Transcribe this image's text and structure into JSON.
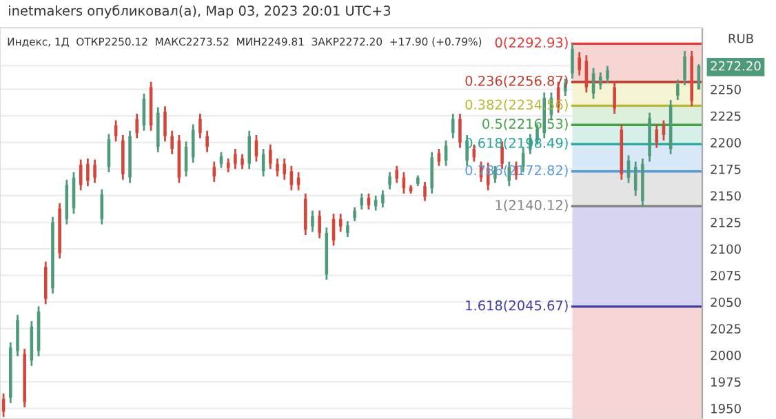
{
  "chart_data": {
    "type": "candlestick",
    "title": "inetmakers опубликовал(а), Мар 03, 2023 20:01 UTC+3",
    "subtitle": "Индекс, 1Д  ОТКР2250.12  МАКС2273.52  МИН2249.81  ЗАКР2272.20  +17.90 (+0.79%)",
    "ylabel": "RUB",
    "categories": [
      null,
      null,
      null,
      null,
      null,
      null,
      null,
      null,
      null,
      null,
      null,
      null,
      null,
      null,
      null,
      null,
      null,
      null,
      null,
      null,
      null,
      null,
      null,
      null,
      null,
      null,
      null,
      null,
      null,
      null,
      null,
      null,
      null,
      null,
      null,
      null,
      null,
      null,
      null,
      null,
      null,
      null,
      null,
      null,
      null,
      null,
      null,
      null,
      null,
      null,
      null,
      null,
      null,
      null,
      null,
      null,
      null,
      null,
      null,
      null,
      null,
      null,
      null,
      null,
      null,
      null,
      null,
      null,
      null,
      null,
      null,
      null,
      null,
      null,
      null,
      null,
      null,
      null,
      null,
      null,
      null,
      null,
      null,
      null,
      null,
      null,
      null,
      null,
      null,
      null,
      null,
      null,
      null,
      null,
      null,
      null,
      null,
      null,
      null,
      null
    ],
    "ohlc": [
      [
        1959,
        1964,
        1942,
        1947
      ],
      [
        1960,
        2012,
        1955,
        2007
      ],
      [
        2004,
        2038,
        1999,
        2033
      ],
      [
        2001,
        2006,
        1951,
        1956
      ],
      [
        1995,
        2032,
        1990,
        2027
      ],
      [
        2004,
        2046,
        1999,
        2041
      ],
      [
        2083,
        2088,
        2048,
        2053
      ],
      [
        2063,
        2130,
        2058,
        2125
      ],
      [
        2138,
        2143,
        2091,
        2096
      ],
      [
        2128,
        2165,
        2123,
        2160
      ],
      [
        2138,
        2172,
        2133,
        2167
      ],
      [
        2179,
        2184,
        2155,
        2160
      ],
      [
        2180,
        2185,
        2159,
        2164
      ],
      [
        2179,
        2184,
        2162,
        2167
      ],
      [
        2128,
        2156,
        2123,
        2151
      ],
      [
        2177,
        2208,
        2172,
        2203
      ],
      [
        2216,
        2221,
        2201,
        2206
      ],
      [
        2202,
        2207,
        2165,
        2170
      ],
      [
        2167,
        2211,
        2162,
        2206
      ],
      [
        2222,
        2227,
        2204,
        2209
      ],
      [
        2216,
        2246,
        2211,
        2241
      ],
      [
        2252,
        2257,
        2211,
        2216
      ],
      [
        2196,
        2233,
        2191,
        2228
      ],
      [
        2229,
        2234,
        2201,
        2206
      ],
      [
        2206,
        2211,
        2189,
        2194
      ],
      [
        2202,
        2207,
        2162,
        2167
      ],
      [
        2173,
        2201,
        2168,
        2196
      ],
      [
        2186,
        2217,
        2181,
        2212
      ],
      [
        2222,
        2227,
        2204,
        2209
      ],
      [
        2206,
        2211,
        2191,
        2196
      ],
      [
        2177,
        2182,
        2163,
        2168
      ],
      [
        2180,
        2191,
        2176,
        2187
      ],
      [
        2181,
        2185,
        2172,
        2176
      ],
      [
        2189,
        2194,
        2175,
        2180
      ],
      [
        2185,
        2189,
        2175,
        2179
      ],
      [
        2180,
        2211,
        2175,
        2206
      ],
      [
        2202,
        2207,
        2182,
        2187
      ],
      [
        2173,
        2194,
        2168,
        2189
      ],
      [
        2193,
        2198,
        2175,
        2180
      ],
      [
        2180,
        2185,
        2168,
        2173
      ],
      [
        2180,
        2185,
        2165,
        2170
      ],
      [
        2173,
        2178,
        2155,
        2160
      ],
      [
        2167,
        2172,
        2155,
        2160
      ],
      [
        2147,
        2152,
        2113,
        2118
      ],
      [
        2121,
        2136,
        2116,
        2131
      ],
      [
        2131,
        2136,
        2110,
        2115
      ],
      [
        2076,
        2120,
        2071,
        2115
      ],
      [
        2128,
        2133,
        2103,
        2108
      ],
      [
        2128,
        2133,
        2116,
        2121
      ],
      [
        2115,
        2126,
        2111,
        2122
      ],
      [
        2129,
        2139,
        2126,
        2136
      ],
      [
        2141,
        2152,
        2137,
        2148
      ],
      [
        2148,
        2152,
        2137,
        2141
      ],
      [
        2140,
        2150,
        2136,
        2146
      ],
      [
        2143,
        2155,
        2139,
        2151
      ],
      [
        2160,
        2172,
        2156,
        2168
      ],
      [
        2174,
        2178,
        2162,
        2166
      ],
      [
        2167,
        2172,
        2152,
        2157
      ],
      [
        2158,
        2160,
        2152,
        2154
      ],
      [
        2161,
        2169,
        2159,
        2167
      ],
      [
        2159,
        2163,
        2145,
        2149
      ],
      [
        2157,
        2191,
        2152,
        2186
      ],
      [
        2190,
        2194,
        2178,
        2182
      ],
      [
        2183,
        2202,
        2178,
        2197
      ],
      [
        2209,
        2227,
        2204,
        2222
      ],
      [
        2222,
        2227,
        2195,
        2200
      ],
      [
        2183,
        2207,
        2178,
        2202
      ],
      [
        2194,
        2198,
        2182,
        2186
      ],
      [
        2178,
        2182,
        2163,
        2167
      ],
      [
        2176,
        2181,
        2155,
        2160
      ],
      [
        2166,
        2178,
        2162,
        2174
      ],
      [
        2196,
        2201,
        2175,
        2180
      ],
      [
        2164,
        2182,
        2159,
        2177
      ],
      [
        2178,
        2182,
        2165,
        2169
      ],
      [
        2177,
        2195,
        2172,
        2190
      ],
      [
        2193,
        2208,
        2189,
        2204
      ],
      [
        2202,
        2217,
        2198,
        2213
      ],
      [
        2209,
        2247,
        2204,
        2242
      ],
      [
        2226,
        2247,
        2221,
        2242
      ],
      [
        2252,
        2257,
        2228,
        2233
      ],
      [
        2248,
        2260,
        2244,
        2256
      ],
      [
        2265,
        2292.93,
        2260,
        2288
      ],
      [
        2280,
        2285,
        2263,
        2268
      ],
      [
        2277,
        2282,
        2247,
        2252
      ],
      [
        2246,
        2270,
        2241,
        2265
      ],
      [
        2254,
        2266,
        2250,
        2262
      ],
      [
        2260,
        2272,
        2256,
        2268
      ],
      [
        2252,
        2257,
        2227,
        2232
      ],
      [
        2212,
        2217,
        2165,
        2170
      ],
      [
        2167,
        2188,
        2162,
        2183
      ],
      [
        2155,
        2182,
        2150,
        2177
      ],
      [
        2145,
        2185,
        2140.12,
        2180
      ],
      [
        2187,
        2228,
        2182,
        2223
      ],
      [
        2212,
        2217,
        2195,
        2200
      ],
      [
        2216,
        2221,
        2202,
        2207
      ],
      [
        2194,
        2240,
        2189,
        2235
      ],
      [
        2244,
        2259,
        2240,
        2255
      ],
      [
        2259,
        2286,
        2254,
        2281
      ],
      [
        2281,
        2286,
        2234,
        2239
      ],
      [
        2250.12,
        2273.52,
        2249.81,
        2272.2
      ]
    ],
    "colors": [
      "#d2463c",
      "#4e9a7a",
      "#4e9a7a",
      "#d2463c",
      "#4e9a7a",
      "#4e9a7a",
      "#d2463c",
      "#4e9a7a",
      "#d2463c",
      "#4e9a7a",
      "#4e9a7a",
      "#d2463c",
      "#d2463c",
      "#d2463c",
      "#4e9a7a",
      "#4e9a7a",
      "#d2463c",
      "#d2463c",
      "#4e9a7a",
      "#d2463c",
      "#4e9a7a",
      "#d2463c",
      "#4e9a7a",
      "#d2463c",
      "#d2463c",
      "#d2463c",
      "#4e9a7a",
      "#4e9a7a",
      "#d2463c",
      "#d2463c",
      "#d2463c",
      "#4e9a7a",
      "#d2463c",
      "#d2463c",
      "#d2463c",
      "#4e9a7a",
      "#d2463c",
      "#4e9a7a",
      "#d2463c",
      "#d2463c",
      "#d2463c",
      "#d2463c",
      "#d2463c",
      "#d2463c",
      "#4e9a7a",
      "#d2463c",
      "#4e9a7a",
      "#d2463c",
      "#d2463c",
      "#4e9a7a",
      "#4e9a7a",
      "#4e9a7a",
      "#d2463c",
      "#4e9a7a",
      "#4e9a7a",
      "#4e9a7a",
      "#d2463c",
      "#d2463c",
      "#d2463c",
      "#4e9a7a",
      "#d2463c",
      "#4e9a7a",
      "#d2463c",
      "#4e9a7a",
      "#4e9a7a",
      "#d2463c",
      "#4e9a7a",
      "#d2463c",
      "#d2463c",
      "#d2463c",
      "#4e9a7a",
      "#d2463c",
      "#4e9a7a",
      "#d2463c",
      "#4e9a7a",
      "#4e9a7a",
      "#4e9a7a",
      "#4e9a7a",
      "#4e9a7a",
      "#d2463c",
      "#4e9a7a",
      "#4e9a7a",
      "#d2463c",
      "#d2463c",
      "#4e9a7a",
      "#4e9a7a",
      "#4e9a7a",
      "#d2463c",
      "#d2463c",
      "#4e9a7a",
      "#4e9a7a",
      "#4e9a7a",
      "#4e9a7a",
      "#d2463c",
      "#d2463c",
      "#4e9a7a",
      "#4e9a7a",
      "#4e9a7a",
      "#d2463c",
      "#4e9a7a"
    ],
    "ylim": [
      1940,
      2308
    ],
    "yticks": [
      1950,
      1975,
      2000,
      2025,
      2050,
      2075,
      2100,
      2125,
      2150,
      2175,
      2200,
      2225,
      2250,
      {
        "value": 2272.2,
        "label": "2272.20"
      }
    ],
    "grid": "y",
    "ref_lines": [
      {
        "axis": "y",
        "value": 2292.93,
        "label": "0(2292.93)",
        "color": "#e53935"
      },
      {
        "axis": "y",
        "value": 2256.87,
        "label": "0.236(2256.87)",
        "color": "#c0392b"
      },
      {
        "axis": "y",
        "value": 2234.56,
        "label": "0.382(2234.56)",
        "color": "#b8b832"
      },
      {
        "axis": "y",
        "value": 2216.53,
        "label": "0.5(2216.53)",
        "color": "#43a047"
      },
      {
        "axis": "y",
        "value": 2198.49,
        "label": "0.618(2198.49)",
        "color": "#26a69a"
      },
      {
        "axis": "y",
        "value": 2172.82,
        "label": "0.786(2172.82)",
        "color": "#5b9bd5"
      },
      {
        "axis": "y",
        "value": 2140.12,
        "label": "1(2140.12)",
        "color": "#808080"
      },
      {
        "axis": "y",
        "value": 2045.67,
        "label": "1.618(2045.67)",
        "color": "#3f3fa0"
      }
    ],
    "bands": [
      {
        "axis": "y",
        "from": 2256.87,
        "to": 2292.93,
        "color": "#f6d5d3"
      },
      {
        "axis": "y",
        "from": 2234.56,
        "to": 2256.87,
        "color": "#f4f3d2"
      },
      {
        "axis": "y",
        "from": 2216.53,
        "to": 2234.56,
        "color": "#dcf0dc"
      },
      {
        "axis": "y",
        "from": 2198.49,
        "to": 2216.53,
        "color": "#d6efe9"
      },
      {
        "axis": "y",
        "from": 2172.82,
        "to": 2198.49,
        "color": "#d8e8f6"
      },
      {
        "axis": "y",
        "from": 2140.12,
        "to": 2172.82,
        "color": "#e4e4e4"
      },
      {
        "axis": "y",
        "from": 2045.67,
        "to": 2140.12,
        "color": "#d5d5f2"
      },
      {
        "axis": "y",
        "from": 1940,
        "to": 2045.67,
        "color": "#f6d5d5"
      }
    ]
  }
}
